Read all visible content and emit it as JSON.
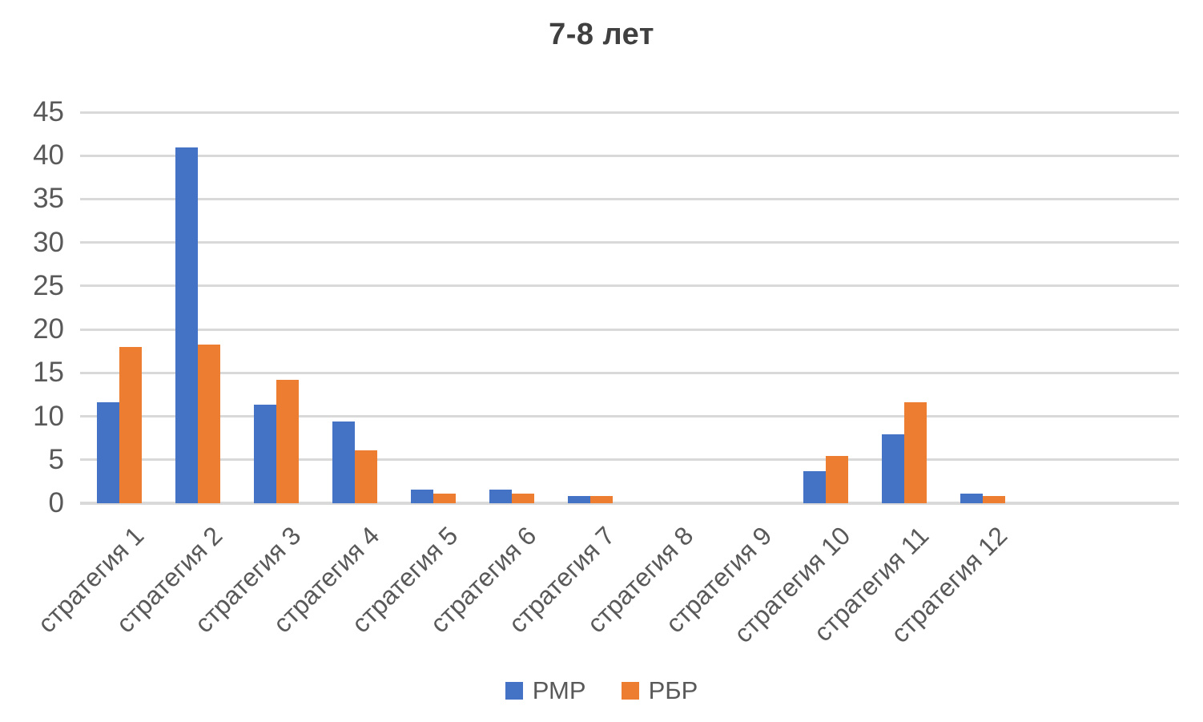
{
  "title": "7-8 лет",
  "chart_data": {
    "type": "bar",
    "title": "7-8 лет",
    "categories": [
      "стратегия 1",
      "стратегия 2",
      "стратегия 3",
      "стратегия 4",
      "стратегия 5",
      "стратегия 6",
      "стратегия 7",
      "стратегия 8",
      "стратегия 9",
      "стратегия 10",
      "стратегия 11",
      "стратегия 12"
    ],
    "series": [
      {
        "name": "РМР",
        "color": "#4472C4",
        "values": [
          11.6,
          40.9,
          11.3,
          9.4,
          1.6,
          1.6,
          0.8,
          0,
          0,
          3.7,
          7.9,
          1.1
        ]
      },
      {
        "name": "РБР",
        "color": "#ED7D31",
        "values": [
          18.0,
          18.3,
          14.2,
          6.1,
          1.1,
          1.1,
          0.8,
          0,
          0,
          5.4,
          11.6,
          0.8
        ]
      }
    ],
    "ylim": [
      0,
      45
    ],
    "ytick_step": 5,
    "yticks": [
      0,
      5,
      10,
      15,
      20,
      25,
      30,
      35,
      40,
      45
    ],
    "grid": true,
    "legend_position": "bottom",
    "axis_slots": 14
  },
  "colors": {
    "series1": "#4472C4",
    "series2": "#ED7D31",
    "gridline": "#D9D9D9",
    "axis_text": "#595959",
    "title_text": "#404040",
    "background": "#FFFFFF"
  }
}
